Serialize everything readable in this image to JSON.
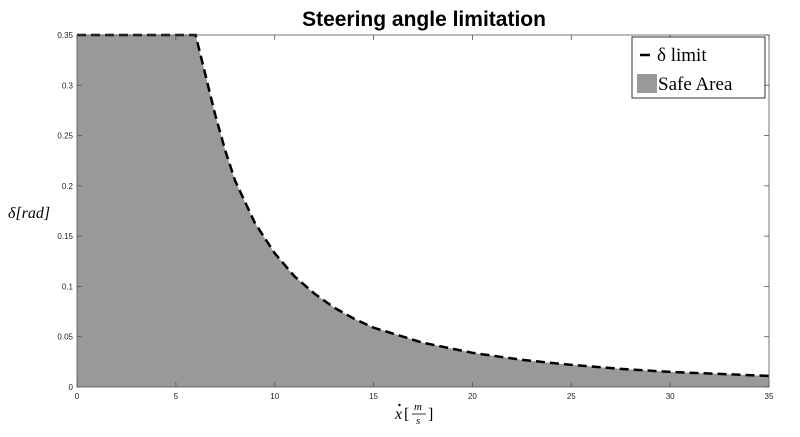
{
  "chart_data": {
    "type": "area",
    "title": "Steering angle limitation",
    "xlabel": "ẋ[m/s]",
    "ylabel": "δ[rad]",
    "xlim": [
      0,
      35
    ],
    "ylim": [
      0,
      0.35
    ],
    "x_ticks": [
      0,
      5,
      10,
      15,
      20,
      25,
      30,
      35
    ],
    "y_ticks": [
      0,
      0.05,
      0.1,
      0.15,
      0.2,
      0.25,
      0.3,
      0.35
    ],
    "x_tick_labels": [
      "0",
      "5",
      "10",
      "15",
      "20",
      "25",
      "30",
      "35"
    ],
    "y_tick_labels": [
      "0",
      "0.05",
      "0.1",
      "0.15",
      "0.2",
      "0.25",
      "0.3",
      "0.35"
    ],
    "grid": false,
    "legend_position": "top-right",
    "series": [
      {
        "name": "δ limit",
        "style": "dashed",
        "color": "#000000",
        "x": [
          0,
          6,
          6.5,
          7,
          7.5,
          8,
          9,
          10,
          11,
          12,
          13,
          14,
          15,
          17.5,
          20,
          22.5,
          25,
          27.5,
          30,
          32.5,
          35
        ],
        "y": [
          0.35,
          0.35,
          0.31,
          0.27,
          0.235,
          0.205,
          0.163,
          0.133,
          0.11,
          0.093,
          0.079,
          0.068,
          0.059,
          0.044,
          0.034,
          0.027,
          0.022,
          0.018,
          0.015,
          0.013,
          0.011
        ]
      },
      {
        "name": "Safe Area",
        "style": "fill",
        "color": "#999999",
        "x": [
          0,
          6,
          6.5,
          7,
          7.5,
          8,
          9,
          10,
          11,
          12,
          13,
          14,
          15,
          17.5,
          20,
          22.5,
          25,
          27.5,
          30,
          32.5,
          35
        ],
        "y": [
          0.35,
          0.35,
          0.31,
          0.27,
          0.235,
          0.205,
          0.163,
          0.133,
          0.11,
          0.093,
          0.079,
          0.068,
          0.059,
          0.044,
          0.034,
          0.027,
          0.022,
          0.018,
          0.015,
          0.013,
          0.011
        ]
      }
    ]
  }
}
